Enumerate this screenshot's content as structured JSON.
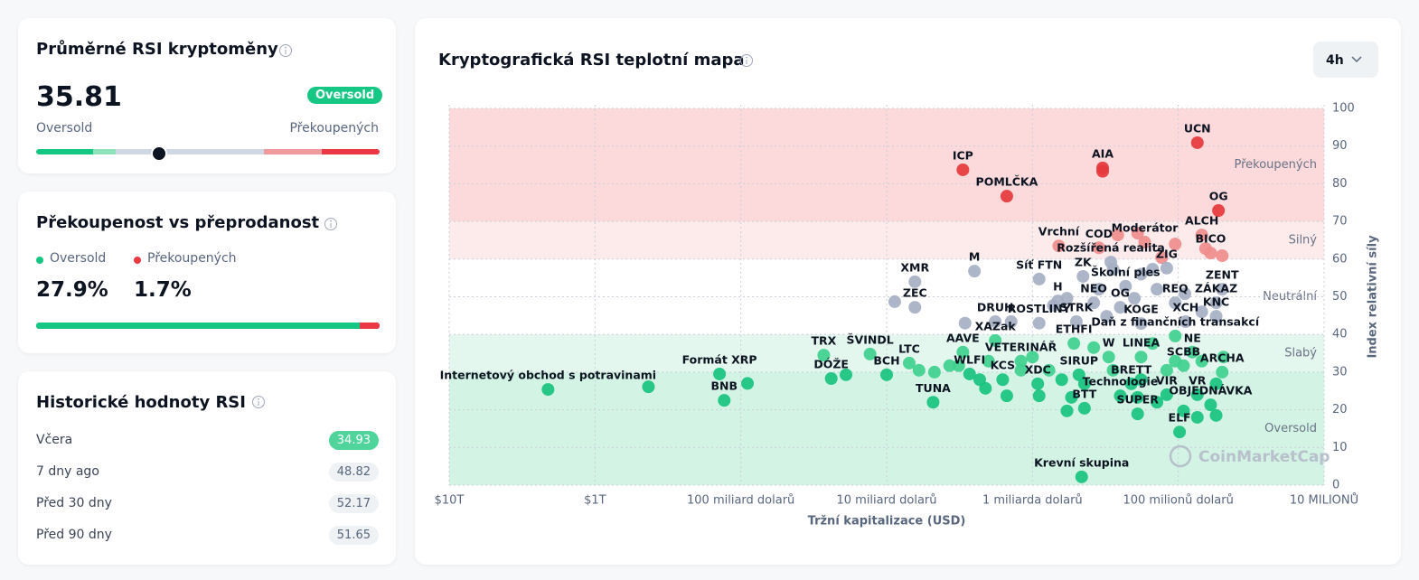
{
  "rsi_card": {
    "title": "Průměrné RSI kryptoměny",
    "value": 35.81,
    "status": "Oversold",
    "label_left": "Oversold",
    "label_right": "Překoupených",
    "scale": [
      0,
      100
    ]
  },
  "ratio_card": {
    "title": "Překoupenost vs přeprodanost",
    "items": [
      {
        "name": "Oversold",
        "value": 27.9,
        "value_label": "27.9%",
        "color": "#16c784"
      },
      {
        "name": "Překoupených",
        "value": 1.7,
        "value_label": "1.7%",
        "color": "#ea3943"
      }
    ]
  },
  "history_card": {
    "title": "Historické hodnoty RSI",
    "rows": [
      [
        "Včera",
        34.93
      ],
      [
        "7 dny ago",
        48.82
      ],
      [
        "Před 30 dny",
        52.17
      ],
      [
        "Před 90 dny",
        51.65
      ]
    ]
  },
  "chart_data": {
    "type": "scatter",
    "title": "Kryptografická RSI teplotní mapa",
    "timeframe": "4h",
    "watermark": "CoinMarketCap",
    "xlabel": "Tržní kapitalizace (USD)",
    "ylabel": "Index relativní síly",
    "xscale": "log",
    "xlim": [
      10000000000000,
      10000000
    ],
    "xticks": [
      {
        "value": 10000000000000,
        "label": "$10T"
      },
      {
        "value": 1000000000000,
        "label": "$1T"
      },
      {
        "value": 100000000000,
        "label": "100 miliard dolarů"
      },
      {
        "value": 10000000000,
        "label": "10 miliard dolarů"
      },
      {
        "value": 1000000000,
        "label": "1 miliarda dolarů"
      },
      {
        "value": 100000000,
        "label": "100 milionů dolarů"
      },
      {
        "value": 10000000,
        "label": "10 MILIONŮ"
      }
    ],
    "ylim": [
      0,
      100
    ],
    "yticks": [
      0,
      10,
      20,
      30,
      40,
      50,
      60,
      70,
      80,
      90,
      100
    ],
    "grid": true,
    "bands": [
      {
        "name": "Překoupených",
        "from": 70,
        "to": 100,
        "color": "#fcd9da",
        "dot_color": "#e5383b"
      },
      {
        "name": "Silný",
        "from": 60,
        "to": 70,
        "color": "#fdeaea",
        "dot_color": "#f08c8c"
      },
      {
        "name": "Neutrální",
        "from": 40,
        "to": 60,
        "color": "#ffffff",
        "dot_color": "#a6afc3"
      },
      {
        "name": "Slabý",
        "from": 30,
        "to": 40,
        "color": "#e4f7ee",
        "dot_color": "#3fd08f"
      },
      {
        "name": "Oversold",
        "from": 0,
        "to": 30,
        "color": "#d3f4e4",
        "dot_color": "#17c27f"
      }
    ],
    "series": [
      {
        "labels": [
          "Internetový obchod s potravinami",
          null,
          "Formát XRP",
          "BNB",
          null,
          "TRX",
          "DÓŽE",
          null,
          "ŠVINDL",
          "BCH",
          "LTC",
          "TUNA",
          "WLFI",
          "AAVE",
          "ICP",
          "XMR",
          "ZEC",
          null,
          "M",
          "POMLČKA",
          "AIA",
          null,
          "UCN",
          "DRUH",
          "ROSTLINY",
          "XAZak",
          "KCS",
          "XDC",
          "VETERINÁŘ",
          "Síť FTN",
          "Vrchní",
          "COD",
          "Moderátor",
          "ZK",
          "ŽIG",
          "Rozšířená realita",
          "OG",
          "ALCH",
          "BICO",
          "ZENT",
          "ZÁKAZ",
          "KNC",
          "XCH",
          "REQ",
          "Školní ples",
          "H",
          "NEO",
          "OG",
          "STRK",
          "KOGE",
          "Daň z finančních transakcí",
          "ETHFI",
          "W",
          "LINEA",
          "NE",
          "SCBB",
          "ARCHA",
          "SIRUP",
          "BRETT",
          "Technologie",
          "VIR",
          "VR",
          "BTT",
          "SUPER",
          "OBJEDNÁVKA",
          "ELF",
          "Krevní skupina",
          null,
          null,
          null,
          null,
          null,
          null,
          null,
          null,
          null,
          null,
          null,
          null,
          null,
          null,
          null,
          null,
          null,
          null,
          null,
          null,
          null,
          null,
          null,
          null,
          null,
          null,
          null,
          null,
          null,
          null,
          null,
          null,
          null,
          null,
          null,
          null,
          null,
          null,
          null,
          null,
          null,
          null,
          null,
          null,
          null,
          null,
          null,
          null,
          null
        ],
        "x": [
          2100000000000,
          430000000000,
          140000000000,
          130000000000,
          90000000000,
          27000000000,
          24000000000,
          19000000000,
          13000000000,
          10000000000,
          7000000000,
          4800000000,
          2700000000,
          3000000000,
          3000000000,
          6400000000,
          6400000000,
          8800000000,
          2500000000,
          1500000000,
          330000000,
          330000000,
          74000000,
          1800000000,
          900000000,
          1800000000,
          1600000000,
          920000000,
          1200000000,
          900000000,
          660000000,
          350000000,
          170000000,
          450000000,
          120000000,
          290000000,
          53000000,
          69000000,
          60000000,
          50000000,
          55000000,
          55000000,
          89000000,
          105000000,
          230000000,
          670000000,
          380000000,
          250000000,
          500000000,
          180000000,
          105000000,
          520000000,
          300000000,
          180000000,
          80000000,
          92000000,
          50000000,
          480000000,
          210000000,
          250000000,
          120000000,
          74000000,
          440000000,
          190000000,
          60000000,
          98000000,
          460000000,
          2900000000,
          1400000000,
          720000000,
          580000000,
          350000000,
          280000000,
          180000000,
          150000000,
          130000000,
          200000000,
          140000000,
          90000000,
          69000000,
          310000000,
          190000000,
          105000000,
          65000000,
          50000000,
          260000000,
          4700000000,
          3700000000,
          2300000000,
          2000000000,
          1200000000,
          1000000000,
          770000000,
          630000000,
          540000000,
          380000000,
          280000000,
          180000000,
          150000000,
          120000000,
          105000000,
          69000000,
          55000000,
          140000000,
          92000000,
          55000000,
          74000000,
          580000000,
          190000000,
          900000000,
          2100000000,
          3200000000,
          6000000000,
          1500000000,
          440000000,
          49000000
        ],
        "values": [
          25.4,
          26.1,
          29.5,
          22.5,
          27,
          34.5,
          28.3,
          29.3,
          34.8,
          29.3,
          32.4,
          22,
          29.5,
          35.3,
          83.7,
          54,
          47.2,
          48.7,
          56.8,
          76.7,
          84.2,
          83.3,
          90.9,
          43.4,
          43,
          38.4,
          28,
          26.9,
          32.9,
          54.7,
          63.5,
          63,
          64.5,
          55.4,
          57.6,
          59.2,
          72.9,
          66.4,
          61.6,
          52,
          48.4,
          44.8,
          43.4,
          48.4,
          52.8,
          48.9,
          48.4,
          47.2,
          43.4,
          42.9,
          39.6,
          37.6,
          34,
          34,
          35.3,
          31.7,
          30,
          29.3,
          26.9,
          23.7,
          24,
          24,
          20.4,
          18.9,
          21.3,
          14.1,
          2.2,
          43,
          43.4,
          47.7,
          49.6,
          52,
          57.3,
          56,
          57.3,
          60.4,
          49.6,
          52,
          50.8,
          46,
          44.8,
          66.9,
          64,
          62.8,
          60.9,
          66.4,
          30,
          31.7,
          28,
          32.9,
          30.5,
          34,
          30.5,
          28,
          23.3,
          36.5,
          30.5,
          28,
          37.6,
          30.5,
          32.9,
          32.9,
          26.9,
          22,
          19.7,
          18.5,
          18,
          19.7,
          23.3,
          23.7,
          25.7,
          31.7,
          30.5,
          23.7,
          26.9,
          34
        ]
      }
    ]
  }
}
